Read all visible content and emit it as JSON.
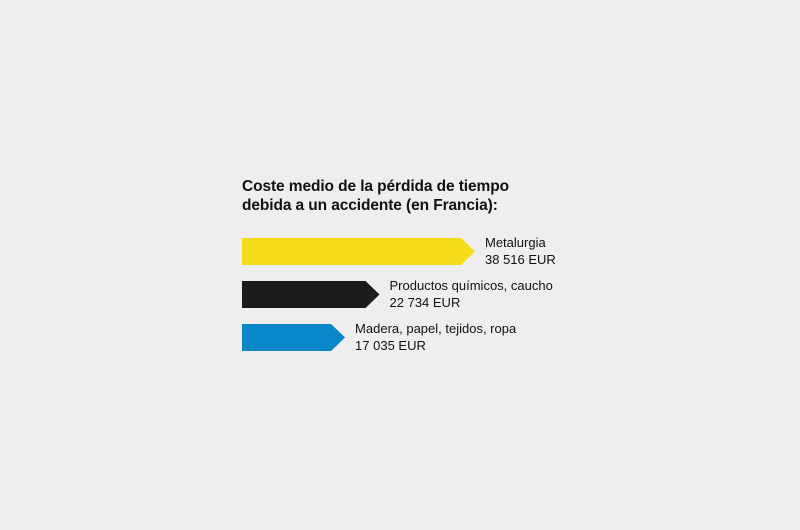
{
  "chart_data": {
    "type": "bar",
    "orientation": "horizontal",
    "title_lines": [
      "Coste medio de la pérdida de tiempo",
      "debida a un accidente (en Francia):"
    ],
    "categories": [
      "Metalurgia",
      "Productos químicos, caucho",
      "Madera, papel, tejidos, ropa"
    ],
    "values": [
      38516,
      22734,
      17035
    ],
    "value_labels": [
      "38 516 EUR",
      "22 734 EUR",
      "17 035 EUR"
    ],
    "colors": [
      "#f4dc1a",
      "#1c1c1c",
      "#0a87c9"
    ],
    "grid": false,
    "legend": "none"
  }
}
